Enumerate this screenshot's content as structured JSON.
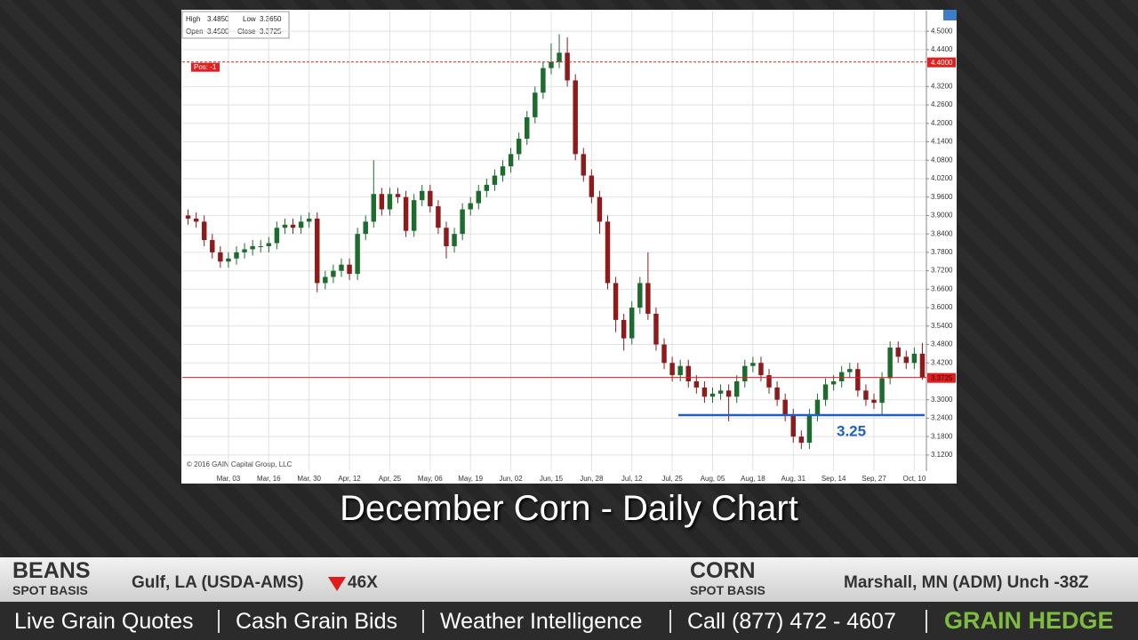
{
  "chart_data": {
    "type": "candlestick",
    "watermark": "© 2016 GAIN Capital Group, LLC",
    "info": {
      "high_label": "High",
      "high": "3.4850",
      "low_label": "Low",
      "low": "3.3650",
      "open_label": "Open",
      "open": "3.4500",
      "close_label": "Close",
      "close": "3.3725"
    },
    "categories": [
      null,
      null,
      null,
      null,
      null,
      "Mar, 03",
      null,
      null,
      null,
      null,
      "Mar, 16",
      null,
      null,
      null,
      null,
      "Mar, 30",
      null,
      null,
      null,
      null,
      "Apr, 12",
      null,
      null,
      null,
      null,
      "Apr, 25",
      null,
      null,
      null,
      null,
      "May, 06",
      null,
      null,
      null,
      null,
      "May, 19",
      null,
      null,
      null,
      null,
      "Jun, 02",
      null,
      null,
      null,
      null,
      "Jun, 15",
      null,
      null,
      null,
      null,
      "Jun, 28",
      null,
      null,
      null,
      null,
      "Jul, 12",
      null,
      null,
      null,
      null,
      "Jul, 25",
      null,
      null,
      null,
      null,
      "Aug, 05",
      null,
      null,
      null,
      null,
      "Aug, 18",
      null,
      null,
      null,
      null,
      "Aug, 31",
      null,
      null,
      null,
      null,
      "Sep, 14",
      null,
      null,
      null,
      null,
      "Sep, 27",
      null,
      null,
      null,
      null,
      "Oct, 10",
      null
    ],
    "open": [
      3.9,
      3.89,
      3.88,
      3.82,
      3.78,
      3.75,
      3.76,
      3.78,
      3.79,
      3.8,
      3.8,
      3.81,
      3.86,
      3.87,
      3.86,
      3.88,
      3.89,
      3.68,
      3.7,
      3.72,
      3.74,
      3.71,
      3.84,
      3.88,
      3.97,
      3.92,
      3.97,
      3.96,
      3.85,
      3.95,
      3.98,
      3.93,
      3.86,
      3.8,
      3.84,
      3.92,
      3.94,
      3.98,
      4.0,
      4.03,
      4.06,
      4.1,
      4.15,
      4.22,
      4.3,
      4.38,
      4.4,
      4.43,
      4.34,
      4.1,
      4.03,
      3.96,
      3.88,
      3.68,
      3.56,
      3.5,
      3.6,
      3.68,
      3.58,
      3.48,
      3.42,
      3.38,
      3.41,
      3.36,
      3.34,
      3.31,
      3.32,
      3.33,
      3.31,
      3.36,
      3.41,
      3.42,
      3.38,
      3.34,
      3.3,
      3.25,
      3.18,
      3.16,
      3.25,
      3.3,
      3.35,
      3.36,
      3.39,
      3.4,
      3.33,
      3.3,
      3.29,
      3.37,
      3.47,
      3.44,
      3.42,
      3.45
    ],
    "high": [
      3.92,
      3.91,
      3.9,
      3.84,
      3.8,
      3.78,
      3.8,
      3.81,
      3.82,
      3.82,
      3.83,
      3.88,
      3.89,
      3.89,
      3.9,
      3.91,
      3.91,
      3.72,
      3.74,
      3.76,
      3.76,
      3.86,
      3.9,
      4.08,
      3.99,
      3.99,
      3.99,
      3.98,
      3.97,
      4.0,
      4.0,
      3.95,
      3.88,
      3.86,
      3.94,
      3.96,
      4.0,
      4.02,
      4.05,
      4.08,
      4.12,
      4.17,
      4.24,
      4.32,
      4.4,
      4.46,
      4.49,
      4.48,
      4.36,
      4.12,
      4.05,
      3.98,
      3.9,
      3.7,
      3.58,
      3.62,
      3.7,
      3.78,
      3.6,
      3.5,
      3.44,
      3.43,
      3.43,
      3.38,
      3.36,
      3.34,
      3.35,
      3.35,
      3.38,
      3.43,
      3.44,
      3.44,
      3.4,
      3.36,
      3.32,
      3.27,
      3.2,
      3.27,
      3.32,
      3.37,
      3.38,
      3.41,
      3.42,
      3.42,
      3.35,
      3.32,
      3.39,
      3.49,
      3.49,
      3.46,
      3.47,
      3.485
    ],
    "low": [
      3.87,
      3.86,
      3.8,
      3.76,
      3.73,
      3.73,
      3.74,
      3.76,
      3.77,
      3.78,
      3.78,
      3.79,
      3.84,
      3.84,
      3.84,
      3.86,
      3.65,
      3.66,
      3.68,
      3.7,
      3.69,
      3.69,
      3.82,
      3.86,
      3.9,
      3.9,
      3.94,
      3.83,
      3.83,
      3.93,
      3.91,
      3.84,
      3.76,
      3.78,
      3.82,
      3.9,
      3.92,
      3.96,
      3.98,
      4.01,
      4.04,
      4.08,
      4.13,
      4.2,
      4.28,
      4.36,
      4.38,
      4.32,
      4.08,
      4.01,
      3.94,
      3.84,
      3.66,
      3.52,
      3.46,
      3.48,
      3.58,
      3.56,
      3.46,
      3.4,
      3.36,
      3.36,
      3.34,
      3.32,
      3.29,
      3.29,
      3.3,
      3.23,
      3.29,
      3.34,
      3.39,
      3.36,
      3.32,
      3.28,
      3.23,
      3.16,
      3.14,
      3.14,
      3.23,
      3.28,
      3.33,
      3.34,
      3.37,
      3.31,
      3.28,
      3.27,
      3.25,
      3.35,
      3.42,
      3.4,
      3.4,
      3.365
    ],
    "close": [
      3.89,
      3.88,
      3.82,
      3.78,
      3.75,
      3.76,
      3.78,
      3.79,
      3.8,
      3.8,
      3.81,
      3.86,
      3.87,
      3.86,
      3.88,
      3.89,
      3.68,
      3.7,
      3.72,
      3.74,
      3.71,
      3.84,
      3.88,
      3.97,
      3.92,
      3.97,
      3.96,
      3.85,
      3.95,
      3.98,
      3.93,
      3.86,
      3.8,
      3.84,
      3.92,
      3.94,
      3.98,
      4.0,
      4.03,
      4.06,
      4.1,
      4.15,
      4.22,
      4.3,
      4.38,
      4.4,
      4.43,
      4.34,
      4.1,
      4.03,
      3.96,
      3.88,
      3.68,
      3.56,
      3.5,
      3.6,
      3.68,
      3.58,
      3.48,
      3.42,
      3.38,
      3.41,
      3.36,
      3.34,
      3.31,
      3.32,
      3.33,
      3.31,
      3.36,
      3.41,
      3.42,
      3.38,
      3.34,
      3.3,
      3.25,
      3.18,
      3.16,
      3.25,
      3.3,
      3.35,
      3.36,
      3.39,
      3.4,
      3.33,
      3.3,
      3.29,
      3.37,
      3.47,
      3.44,
      3.42,
      3.45,
      3.3725
    ],
    "up_color": "#1e6b2e",
    "down_color": "#8e1b1b",
    "ylim": [
      3.03,
      4.567
    ],
    "yticks": [
      {
        "value": 4.5,
        "label": "4.5000"
      },
      {
        "value": 4.44,
        "label": "4.4400"
      },
      {
        "value": 4.32,
        "label": "4.3200"
      },
      {
        "value": 4.26,
        "label": "4.2600"
      },
      {
        "value": 4.2,
        "label": "4.2000"
      },
      {
        "value": 4.14,
        "label": "4.1400"
      },
      {
        "value": 4.08,
        "label": "4.0800"
      },
      {
        "value": 4.02,
        "label": "4.0200"
      },
      {
        "value": 3.96,
        "label": "3.9600"
      },
      {
        "value": 3.9,
        "label": "3.9000"
      },
      {
        "value": 3.84,
        "label": "3.8400"
      },
      {
        "value": 3.78,
        "label": "3.7800"
      },
      {
        "value": 3.72,
        "label": "3.7200"
      },
      {
        "value": 3.66,
        "label": "3.6600"
      },
      {
        "value": 3.6,
        "label": "3.6000"
      },
      {
        "value": 3.54,
        "label": "3.5400"
      },
      {
        "value": 3.48,
        "label": "3.4800"
      },
      {
        "value": 3.42,
        "label": "3.4200"
      },
      {
        "value": 3.3,
        "label": "3.3000"
      },
      {
        "value": 3.24,
        "label": "3.2400"
      },
      {
        "value": 3.18,
        "label": "3.1800"
      },
      {
        "value": 3.12,
        "label": "3.1200"
      }
    ],
    "grid": true,
    "position_line": {
      "value": 4.4,
      "label": "4.4000",
      "tag": "Pos: -1",
      "color": "#e02020"
    },
    "last_line": {
      "value": 3.3725,
      "label": "3.3725",
      "color": "#e02020"
    },
    "support_line": {
      "value": 3.25,
      "label": "3.25",
      "color": "#1f5fc4"
    }
  },
  "caption": "December Corn - Daily Chart",
  "ticker": {
    "beans": "BEANS",
    "beans_sub": "SPOT BASIS",
    "beans_quote": "Gulf, LA (USDA-AMS)",
    "beans_change": "46X",
    "corn": "CORN",
    "corn_sub": "SPOT BASIS",
    "corn_quote": "Marshall, MN (ADM) Unch -38Z"
  },
  "footer": {
    "links": [
      "Live Grain Quotes",
      "Cash Grain Bids",
      "Weather Intelligence",
      "Call (877) 472 - 4607"
    ],
    "brand": "GRAIN HEDGE"
  }
}
